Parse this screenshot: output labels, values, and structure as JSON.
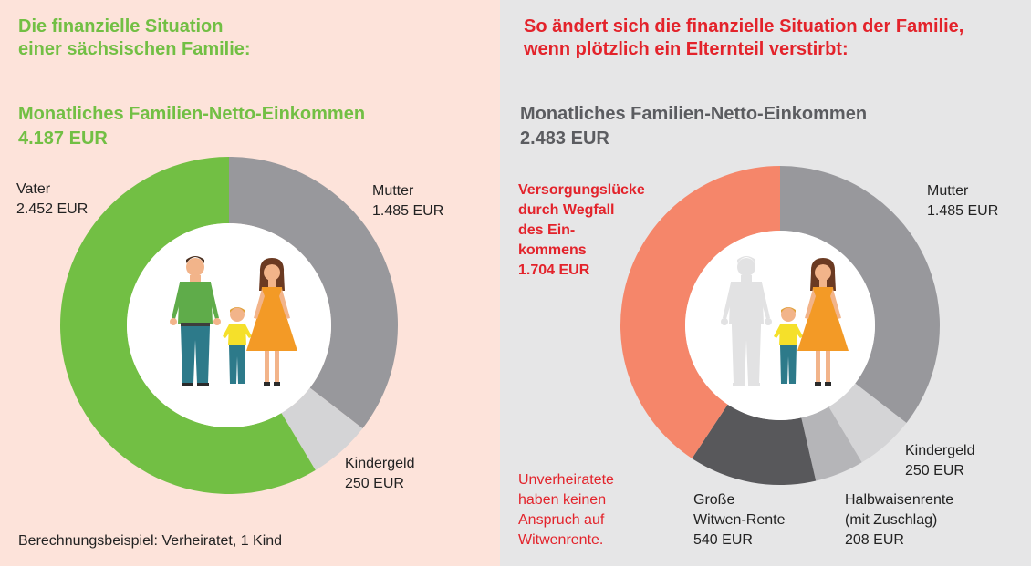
{
  "left": {
    "heading": "Die finanzielle Situation\neiner sächsischen Familie:",
    "income_title": "Monatliches Familien-Netto-Einkommen",
    "income_total": "4.187 EUR",
    "labels": {
      "vater": "Vater\n2.452 EUR",
      "mutter": "Mutter\n1.485 EUR",
      "kindergeld": "Kindergeld\n250 EUR"
    },
    "footnote": "Berechnungsbeispiel: Verheiratet, 1 Kind"
  },
  "right": {
    "heading": "So ändert sich die finanzielle Situation der Familie,\nwenn plötzlich ein Elternteil verstirbt:",
    "income_title": "Monatliches Familien-Netto-Einkommen",
    "income_total": "2.483 EUR",
    "labels": {
      "gap": "Versorgungslücke\ndurch Wegfall\ndes Ein-\nkommens\n1.704 EUR",
      "mutter": "Mutter\n1.485 EUR",
      "kindergeld": "Kindergeld\n250 EUR",
      "halbwaisen": "Halbwaisenrente\n(mit Zuschlag)\n208 EUR",
      "witwen": "Große\nWitwen-Rente\n540 EUR"
    },
    "note": "Unverheiratete\nhaben keinen\nAnspruch auf\nWitwenrente."
  },
  "colors": {
    "green": "#72bf44",
    "grey_dark": "#98989c",
    "grey_light": "#d4d4d6",
    "salmon": "#f5866a",
    "charcoal": "#58585b",
    "grey_mid": "#b5b5b8",
    "red": "#e3232b",
    "left_bg": "#fde3da",
    "right_bg": "#e6e6e7"
  },
  "chart_data": [
    {
      "type": "pie",
      "title": "Monatliches Familien-Netto-Einkommen",
      "total": 4187,
      "unit": "EUR",
      "slices": [
        {
          "label": "Mutter",
          "value": 1485,
          "color": "#98989c"
        },
        {
          "label": "Kindergeld",
          "value": 250,
          "color": "#d4d4d6"
        },
        {
          "label": "Vater",
          "value": 2452,
          "color": "#72bf44"
        }
      ]
    },
    {
      "type": "pie",
      "title": "Monatliches Familien-Netto-Einkommen",
      "total": 2483,
      "unit": "EUR",
      "slices": [
        {
          "label": "Mutter",
          "value": 1485,
          "color": "#98989c"
        },
        {
          "label": "Kindergeld",
          "value": 250,
          "color": "#d4d4d6"
        },
        {
          "label": "Halbwaisenrente (mit Zuschlag)",
          "value": 208,
          "color": "#b5b5b8"
        },
        {
          "label": "Große Witwen-Rente",
          "value": 540,
          "color": "#58585b"
        },
        {
          "label": "Versorgungslücke durch Wegfall des Einkommens",
          "value": 1704,
          "color": "#f5866a"
        }
      ]
    }
  ]
}
